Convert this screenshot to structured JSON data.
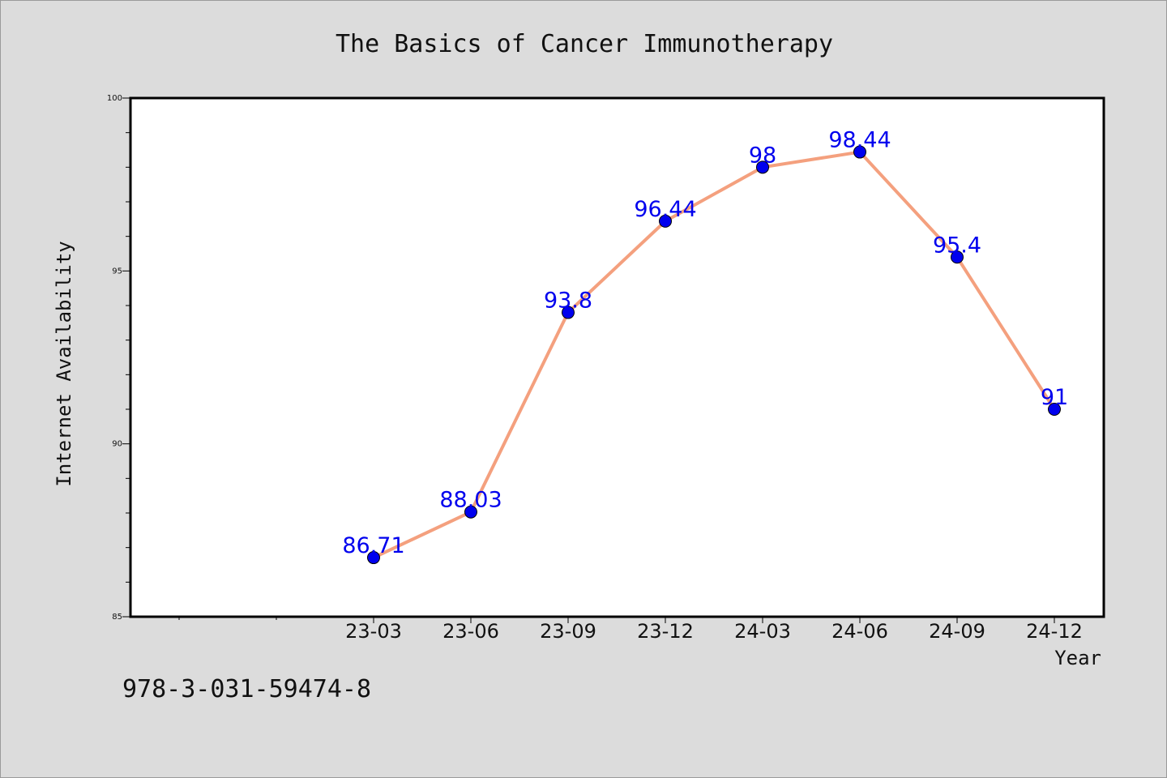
{
  "chart_data": {
    "type": "line",
    "title": "The Basics of Cancer Immunotherapy",
    "xlabel": "Year",
    "ylabel": "Internet Availability",
    "categories": [
      "23-03",
      "23-06",
      "23-09",
      "23-12",
      "24-03",
      "24-06",
      "24-09",
      "24-12"
    ],
    "values": [
      86.71,
      88.03,
      93.8,
      96.44,
      98,
      98.44,
      95.4,
      91
    ],
    "data_labels": [
      "86.71",
      "88.03",
      "93.8",
      "96.44",
      "98",
      "98.44",
      "95.4",
      "91"
    ],
    "ylim": [
      85,
      100
    ],
    "y_ticks": [
      85,
      90,
      95,
      100
    ],
    "y_tick_labels": [
      "85",
      "90",
      "95",
      "100"
    ],
    "grid": false,
    "line_color": "#f4a07e",
    "marker_color": "#0000ee",
    "label_color": "#0000ee"
  },
  "footer": {
    "code": "978-3-031-59474-8"
  }
}
